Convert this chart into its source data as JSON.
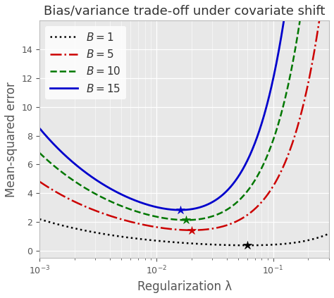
{
  "title": "Bias/variance trade-off under covariate shift",
  "xlabel": "Regularization λ",
  "ylabel": "Mean-squared error",
  "background_color": "#e8e8e8",
  "xlim_log": [
    -3,
    -0.52
  ],
  "ylim": [
    -0.5,
    16
  ],
  "yticks": [
    0,
    2,
    4,
    6,
    8,
    10,
    12,
    14
  ],
  "series": [
    {
      "label": "$B = 1$",
      "B": 1.0,
      "color": "#000000",
      "linestyle": "dotted",
      "lw": 1.8,
      "star_lambda": 0.058,
      "star_y": 0.32
    },
    {
      "label": "$B = 5$",
      "B": 5.0,
      "color": "#cc0000",
      "linestyle": "dashdot",
      "lw": 1.8,
      "star_lambda": 0.024,
      "star_y": 1.52
    },
    {
      "label": "$B = 10$",
      "B": 10.0,
      "color": "#007700",
      "linestyle": "dashed",
      "lw": 1.8,
      "star_lambda": 0.02,
      "star_y": 2.25
    },
    {
      "label": "$B = 15$",
      "B": 15.0,
      "color": "#0000cc",
      "linestyle": "solid",
      "lw": 2.0,
      "star_lambda": 0.018,
      "star_y": 2.85
    }
  ],
  "bias_coeff": 0.95,
  "bias_exp": 1.05,
  "var_coeff": 0.0022,
  "var_exp": 0.72,
  "legend_fontsize": 11,
  "title_fontsize": 13,
  "axis_label_fontsize": 12
}
